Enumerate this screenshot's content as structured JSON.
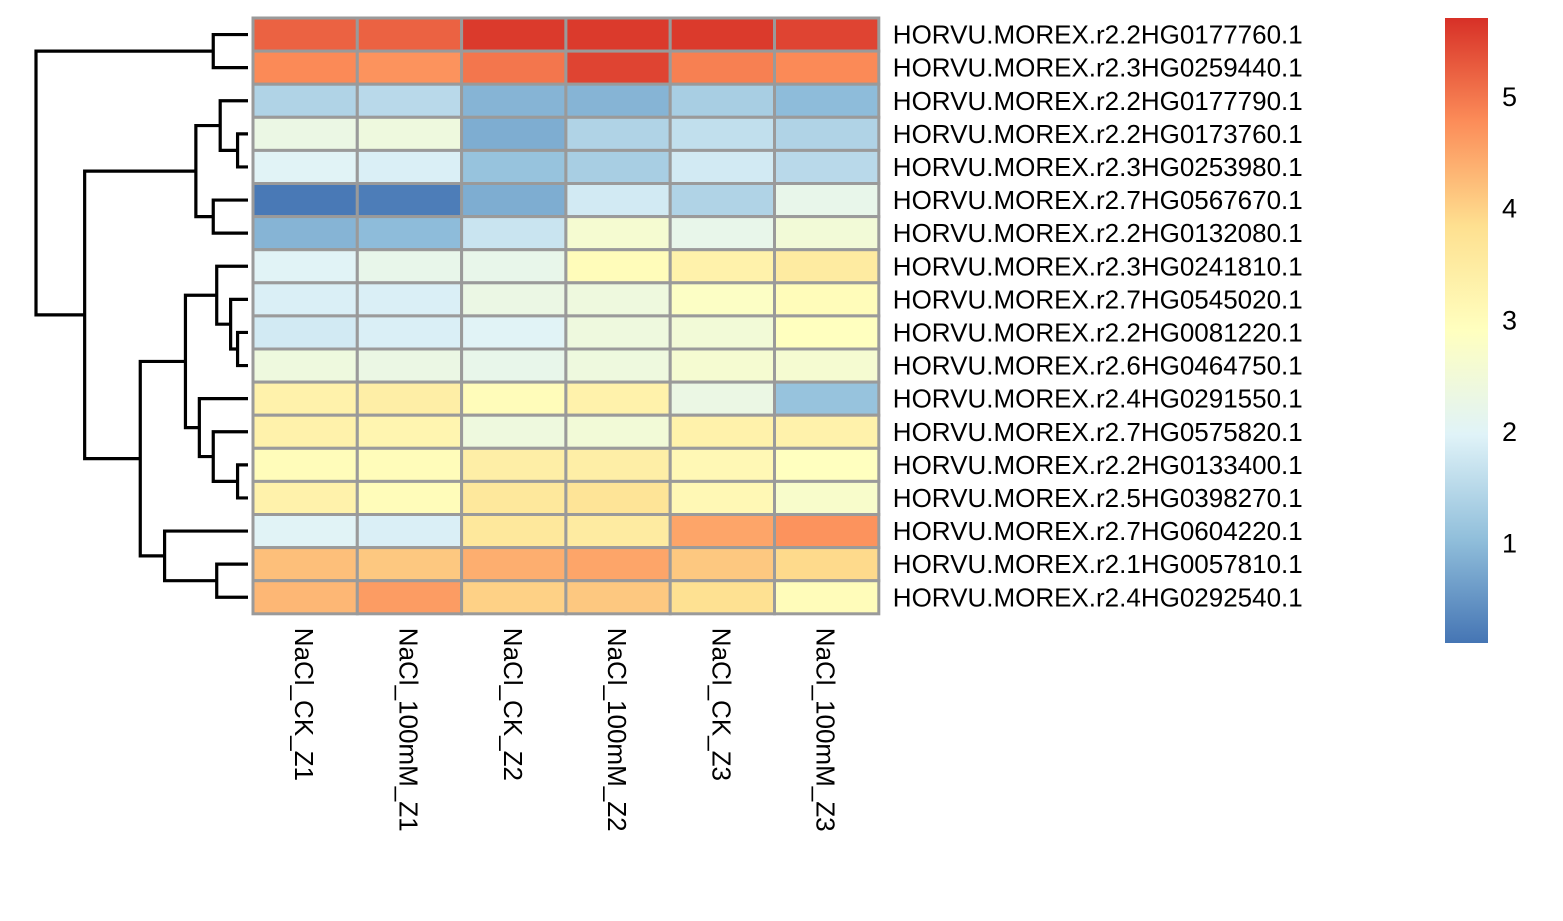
{
  "chart_data": {
    "type": "heatmap",
    "columns": [
      "NaCl_CK_Z1",
      "NaCl_100mM_Z1",
      "NaCl_CK_Z2",
      "NaCl_100mM_Z2",
      "NaCl_CK_Z3",
      "NaCl_100mM_Z3"
    ],
    "rows": [
      "HORVU.MOREX.r2.2HG0177760.1",
      "HORVU.MOREX.r2.3HG0259440.1",
      "HORVU.MOREX.r2.2HG0177790.1",
      "HORVU.MOREX.r2.2HG0173760.1",
      "HORVU.MOREX.r2.3HG0253980.1",
      "HORVU.MOREX.r2.7HG0567670.1",
      "HORVU.MOREX.r2.2HG0132080.1",
      "HORVU.MOREX.r2.3HG0241810.1",
      "HORVU.MOREX.r2.7HG0545020.1",
      "HORVU.MOREX.r2.2HG0081220.1",
      "HORVU.MOREX.r2.6HG0464750.1",
      "HORVU.MOREX.r2.4HG0291550.1",
      "HORVU.MOREX.r2.7HG0575820.1",
      "HORVU.MOREX.r2.2HG0133400.1",
      "HORVU.MOREX.r2.5HG0398270.1",
      "HORVU.MOREX.r2.7HG0604220.1",
      "HORVU.MOREX.r2.1HG0057810.1",
      "HORVU.MOREX.r2.4HG0292540.1"
    ],
    "values": [
      [
        5.2,
        5.2,
        5.6,
        5.6,
        5.6,
        5.5
      ],
      [
        4.8,
        4.7,
        5.0,
        5.5,
        4.9,
        4.8
      ],
      [
        1.4,
        1.5,
        0.9,
        0.9,
        1.3,
        1.0
      ],
      [
        2.3,
        2.4,
        0.8,
        1.4,
        1.6,
        1.4
      ],
      [
        2.0,
        1.9,
        1.1,
        1.3,
        1.8,
        1.5
      ],
      [
        0.15,
        0.2,
        0.8,
        1.8,
        1.4,
        2.2
      ],
      [
        0.9,
        1.0,
        1.7,
        2.6,
        2.2,
        2.5
      ],
      [
        2.0,
        2.2,
        2.2,
        3.0,
        3.3,
        3.5
      ],
      [
        1.9,
        1.9,
        2.3,
        2.4,
        2.8,
        3.0
      ],
      [
        1.8,
        1.9,
        2.0,
        2.4,
        2.5,
        2.9
      ],
      [
        2.4,
        2.3,
        2.2,
        2.4,
        2.6,
        2.6
      ],
      [
        3.3,
        3.4,
        3.0,
        3.3,
        2.3,
        1.1
      ],
      [
        3.3,
        3.2,
        2.4,
        2.5,
        3.3,
        3.3
      ],
      [
        3.0,
        3.0,
        3.4,
        3.4,
        3.1,
        2.9
      ],
      [
        3.3,
        3.0,
        3.6,
        3.7,
        3.1,
        2.7
      ],
      [
        2.0,
        1.9,
        3.6,
        3.5,
        4.5,
        4.7
      ],
      [
        4.2,
        4.1,
        4.4,
        4.5,
        4.1,
        3.9
      ],
      [
        4.3,
        4.6,
        4.0,
        4.1,
        3.8,
        3.0
      ]
    ],
    "colorbar": {
      "min": 0.1,
      "max": 5.7,
      "ticks": [
        "1",
        "2",
        "3",
        "4",
        "5"
      ]
    },
    "colormap": [
      "#4575B4",
      "#91BFDB",
      "#E0F3F8",
      "#FFFFBF",
      "#FEE090",
      "#FC8D59",
      "#D73027"
    ],
    "row_dendrogram": {
      "merges": [
        [
          -1,
          -2,
          0.5
        ],
        [
          -4,
          -5,
          0.15
        ],
        [
          -3,
          2,
          0.4
        ],
        [
          -6,
          -7,
          0.5
        ],
        [
          3,
          4,
          0.75
        ],
        [
          -10,
          -11,
          0.15
        ],
        [
          -9,
          6,
          0.25
        ],
        [
          -8,
          7,
          0.45
        ],
        [
          -14,
          -15,
          0.15
        ],
        [
          -13,
          9,
          0.5
        ],
        [
          -12,
          10,
          0.7
        ],
        [
          8,
          11,
          0.9
        ],
        [
          -17,
          -18,
          0.45
        ],
        [
          -16,
          13,
          1.2
        ],
        [
          12,
          14,
          1.55
        ],
        [
          5,
          15,
          2.35
        ],
        [
          1,
          16,
          3.05
        ]
      ]
    }
  }
}
